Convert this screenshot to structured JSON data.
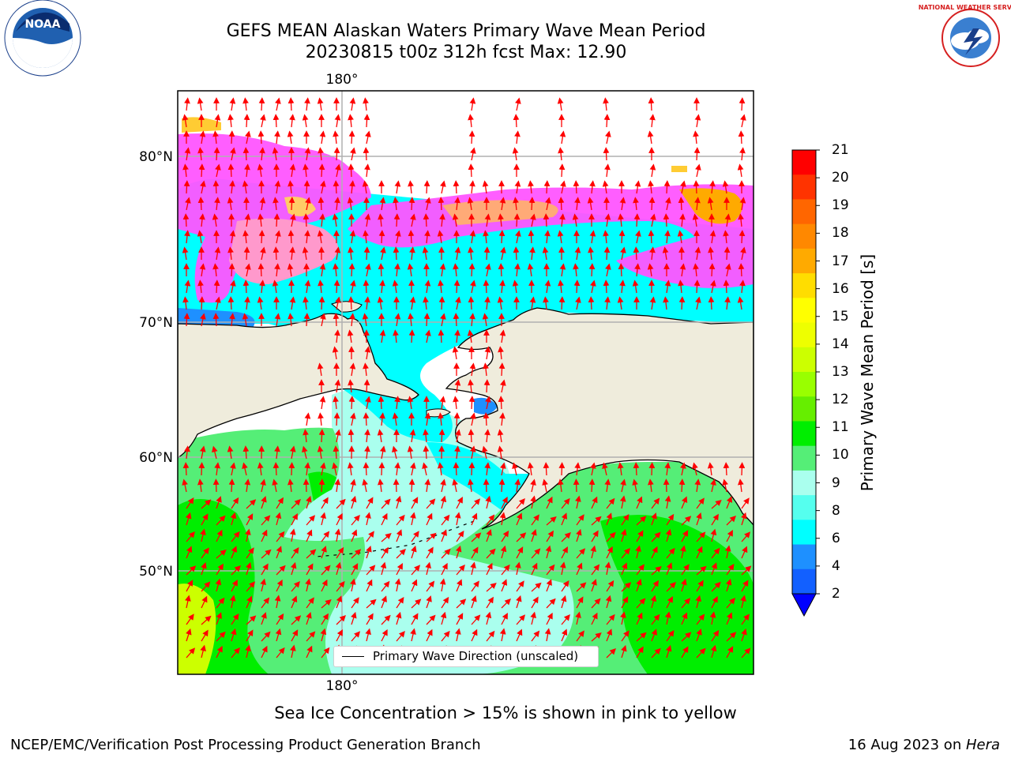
{
  "header": {
    "title_line1": "GEFS MEAN Alaskan Waters Primary Wave Mean Period",
    "title_line2": "20230815 t00z 312h fcst   Max: 12.90"
  },
  "logos": {
    "left": {
      "name": "noaa-logo",
      "text": "NOAA"
    },
    "right": {
      "name": "nws-logo",
      "text": "NATIONAL WEATHER SERVICE"
    }
  },
  "map": {
    "lon_label_top": "180°",
    "lon_label_bottom": "180°",
    "lat_labels": [
      "80°N",
      "70°N",
      "60°N",
      "50°N"
    ],
    "colors": {
      "land": "#efecdc",
      "arrow": "#ff0000",
      "coast": "#000000",
      "grid": "#b0b0b0"
    }
  },
  "legend": {
    "label": "Primary Wave Direction (unscaled)"
  },
  "colorbar": {
    "label": "Primary Wave Mean Period [s]",
    "ticks": [
      "21",
      "20",
      "19",
      "18",
      "17",
      "16",
      "15",
      "14",
      "13",
      "12",
      "11",
      "10",
      "9",
      "8",
      "6",
      "4",
      "2"
    ],
    "colors": [
      "#ff0000",
      "#ff3300",
      "#ff6600",
      "#ff8800",
      "#ffaa00",
      "#ffdd00",
      "#ffff00",
      "#eeff00",
      "#ccff00",
      "#99ff00",
      "#66ee00",
      "#00ee00",
      "#55ee77",
      "#aaffee",
      "#55ffee",
      "#00ffff",
      "#1e90ff",
      "#1260ff"
    ],
    "extend_color": "#0000ff"
  },
  "footer": {
    "note": "Sea Ice Concentration > 15% is shown in pink to yellow",
    "credit_left": "NCEP/EMC/Verification Post Processing Product Generation Branch",
    "credit_right_prefix": "16 Aug 2023 on ",
    "credit_right_host": "Hera"
  }
}
